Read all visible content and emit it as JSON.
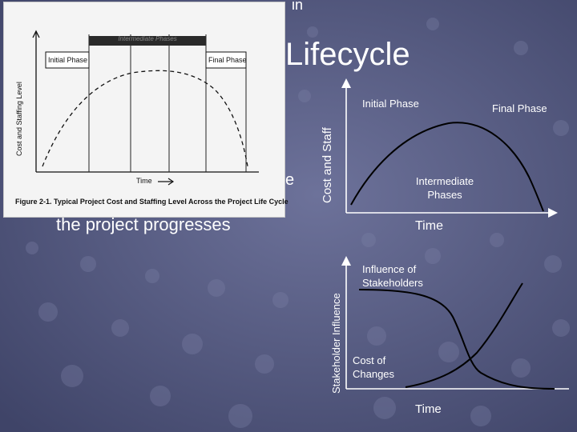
{
  "slide": {
    "title_fragment_top": "in",
    "title_fragment_main": "Lifecycle",
    "hidden_text_e": "e",
    "bullet_line": "the project progresses"
  },
  "figure": {
    "caption": "Figure 2-1. Typical Project Cost and Staffing Level Across the Project Life Cycle",
    "y_axis_label": "Cost and Staffing Level",
    "x_axis_label": "Time",
    "initial_phase": "Initial Phase",
    "final_phase": "Final Phase",
    "intermediate_band": "Intermediate Phases"
  },
  "cost_chart": {
    "y_label": "Cost and Staff",
    "x_label": "Time",
    "initial_phase": "Initial Phase",
    "final_phase": "Final Phase",
    "intermediate": "Intermediate Phases"
  },
  "influence_chart": {
    "y_label": "Stakeholder Influence",
    "x_label": "Time",
    "influence": "Influence of Stakeholders",
    "cost_changes": "Cost of Changes"
  },
  "colors": {
    "background": "#575c84",
    "text": "#ffffff",
    "curve": "#000000"
  }
}
